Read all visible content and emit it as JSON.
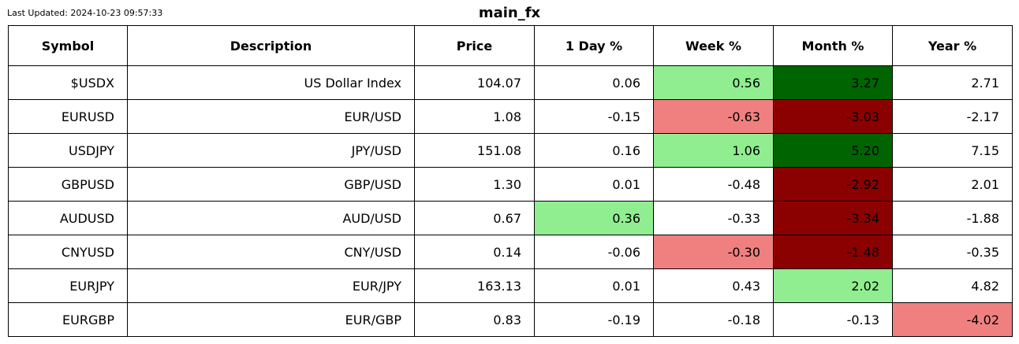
{
  "last_updated": "Last Updated: 2024-10-23 09:57:33",
  "title": "main_fx",
  "colors": {
    "strong_up": "#006400",
    "up": "#90ee90",
    "down": "#f08080",
    "strong_down": "#8b0000",
    "neutral": "#ffffff"
  },
  "chart_data": {
    "type": "table",
    "title": "main_fx",
    "columns": [
      "Symbol",
      "Description",
      "Price",
      "1 Day %",
      "Week %",
      "Month %",
      "Year %"
    ],
    "rows": [
      {
        "cells": [
          "$USDX",
          "US Dollar Index",
          "104.07",
          "0.06",
          "0.56",
          "3.27",
          "2.71"
        ],
        "shading": [
          "neutral",
          "neutral",
          "neutral",
          "neutral",
          "up",
          "strong_up",
          "neutral"
        ]
      },
      {
        "cells": [
          "EURUSD",
          "EUR/USD",
          "1.08",
          "-0.15",
          "-0.63",
          "-3.03",
          "-2.17"
        ],
        "shading": [
          "neutral",
          "neutral",
          "neutral",
          "neutral",
          "down",
          "strong_down",
          "neutral"
        ]
      },
      {
        "cells": [
          "USDJPY",
          "JPY/USD",
          "151.08",
          "0.16",
          "1.06",
          "5.20",
          "7.15"
        ],
        "shading": [
          "neutral",
          "neutral",
          "neutral",
          "neutral",
          "up",
          "strong_up",
          "neutral"
        ]
      },
      {
        "cells": [
          "GBPUSD",
          "GBP/USD",
          "1.30",
          "0.01",
          "-0.48",
          "-2.92",
          "2.01"
        ],
        "shading": [
          "neutral",
          "neutral",
          "neutral",
          "neutral",
          "neutral",
          "strong_down",
          "neutral"
        ]
      },
      {
        "cells": [
          "AUDUSD",
          "AUD/USD",
          "0.67",
          "0.36",
          "-0.33",
          "-3.34",
          "-1.88"
        ],
        "shading": [
          "neutral",
          "neutral",
          "neutral",
          "up",
          "neutral",
          "strong_down",
          "neutral"
        ]
      },
      {
        "cells": [
          "CNYUSD",
          "CNY/USD",
          "0.14",
          "-0.06",
          "-0.30",
          "-1.48",
          "-0.35"
        ],
        "shading": [
          "neutral",
          "neutral",
          "neutral",
          "neutral",
          "down",
          "strong_down",
          "neutral"
        ]
      },
      {
        "cells": [
          "EURJPY",
          "EUR/JPY",
          "163.13",
          "0.01",
          "0.43",
          "2.02",
          "4.82"
        ],
        "shading": [
          "neutral",
          "neutral",
          "neutral",
          "neutral",
          "neutral",
          "up",
          "neutral"
        ]
      },
      {
        "cells": [
          "EURGBP",
          "EUR/GBP",
          "0.83",
          "-0.19",
          "-0.18",
          "-0.13",
          "-4.02"
        ],
        "shading": [
          "neutral",
          "neutral",
          "neutral",
          "neutral",
          "neutral",
          "neutral",
          "down"
        ]
      }
    ]
  }
}
